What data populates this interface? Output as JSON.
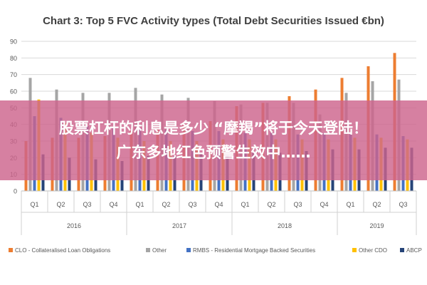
{
  "chart_data": {
    "type": "bar",
    "title": "Chart 3: Top 5 FVC Activity types (Total Debt Securities Issued €bn)",
    "categories": [
      "Q1",
      "Q2",
      "Q3",
      "Q4",
      "Q1",
      "Q2",
      "Q3",
      "Q4",
      "Q1",
      "Q2",
      "Q3",
      "Q4",
      "Q1",
      "Q2",
      "Q3"
    ],
    "years": [
      {
        "label": "2016",
        "quarters": 4
      },
      {
        "label": "2017",
        "quarters": 4
      },
      {
        "label": "2018",
        "quarters": 4
      },
      {
        "label": "2019",
        "quarters": 3
      }
    ],
    "ylim": [
      0,
      90
    ],
    "yticks": [
      0,
      10,
      20,
      30,
      40,
      50,
      60,
      70,
      80,
      90
    ],
    "grid": true,
    "legend_position": "bottom",
    "series": [
      {
        "name": "CLO - Collateralised Loan Obligations",
        "color": "#ED7D31",
        "values": [
          30,
          32,
          32,
          33,
          36,
          38,
          40,
          42,
          51,
          53,
          57,
          61,
          68,
          75,
          83
        ]
      },
      {
        "name": "Other",
        "color": "#A5A5A5",
        "values": [
          68,
          61,
          59,
          59,
          62,
          58,
          56,
          54,
          52,
          53,
          53,
          46,
          59,
          66,
          67
        ]
      },
      {
        "name": "RMBS - Residential Mortgage Backed Securities",
        "color": "#4472C4",
        "values": [
          45,
          44,
          39,
          38,
          38,
          37,
          36,
          36,
          35,
          35,
          34,
          35,
          34,
          34,
          33
        ]
      },
      {
        "name": "Other CDO",
        "color": "#FFC000",
        "values": [
          55,
          41,
          35,
          32,
          30,
          30,
          30,
          31,
          31,
          31,
          31,
          31,
          32,
          32,
          31
        ]
      },
      {
        "name": "ABCP",
        "color": "#264478",
        "values": [
          22,
          20,
          19,
          18,
          21,
          21,
          22,
          22,
          23,
          23,
          24,
          25,
          25,
          26,
          26
        ]
      }
    ]
  },
  "overlay": {
    "line1": "股票杠杆的利息是多少 “摩羯”将于今天登陆！",
    "line2": "广东多地红色预警生效中……"
  }
}
